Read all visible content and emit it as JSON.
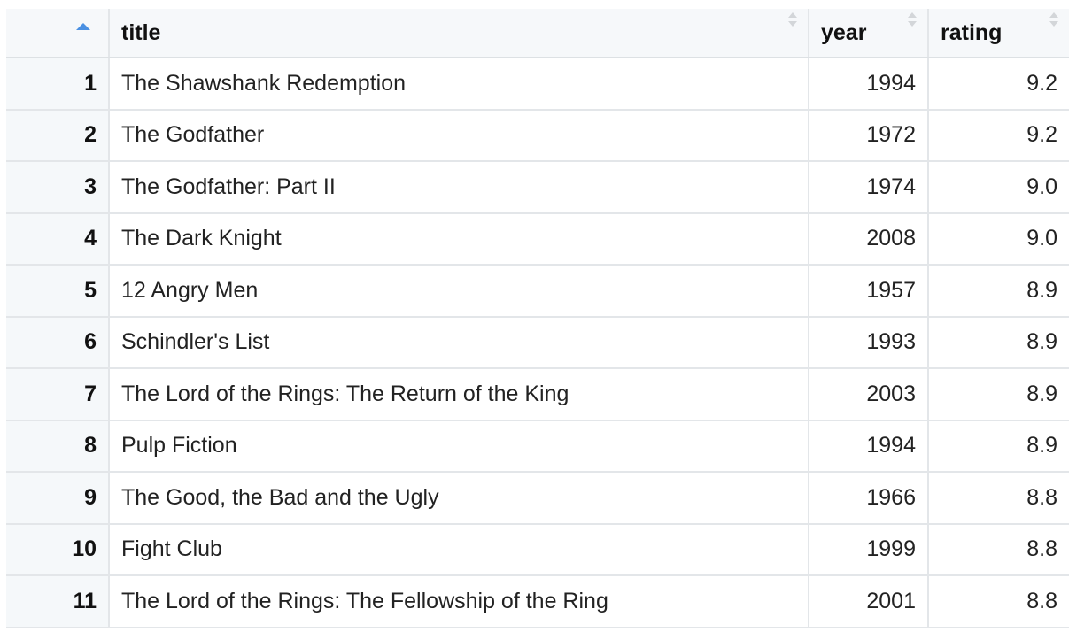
{
  "columns": [
    "",
    "title",
    "year",
    "rating"
  ],
  "sort": {
    "column": "row-number",
    "direction": "ascending",
    "accent": "#4a90e2"
  },
  "rows": [
    {
      "n": "1",
      "title": "The Shawshank Redemption",
      "year": "1994",
      "rating": "9.2"
    },
    {
      "n": "2",
      "title": "The Godfather",
      "year": "1972",
      "rating": "9.2"
    },
    {
      "n": "3",
      "title": "The Godfather: Part II",
      "year": "1974",
      "rating": "9.0"
    },
    {
      "n": "4",
      "title": "The Dark Knight",
      "year": "2008",
      "rating": "9.0"
    },
    {
      "n": "5",
      "title": "12 Angry Men",
      "year": "1957",
      "rating": "8.9"
    },
    {
      "n": "6",
      "title": "Schindler's List",
      "year": "1993",
      "rating": "8.9"
    },
    {
      "n": "7",
      "title": "The Lord of the Rings: The Return of the King",
      "year": "2003",
      "rating": "8.9"
    },
    {
      "n": "8",
      "title": "Pulp Fiction",
      "year": "1994",
      "rating": "8.9"
    },
    {
      "n": "9",
      "title": "The Good, the Bad and the Ugly",
      "year": "1966",
      "rating": "8.8"
    },
    {
      "n": "10",
      "title": "Fight Club",
      "year": "1999",
      "rating": "8.8"
    },
    {
      "n": "11",
      "title": "The Lord of the Rings: The Fellowship of the Ring",
      "year": "2001",
      "rating": "8.8"
    }
  ]
}
